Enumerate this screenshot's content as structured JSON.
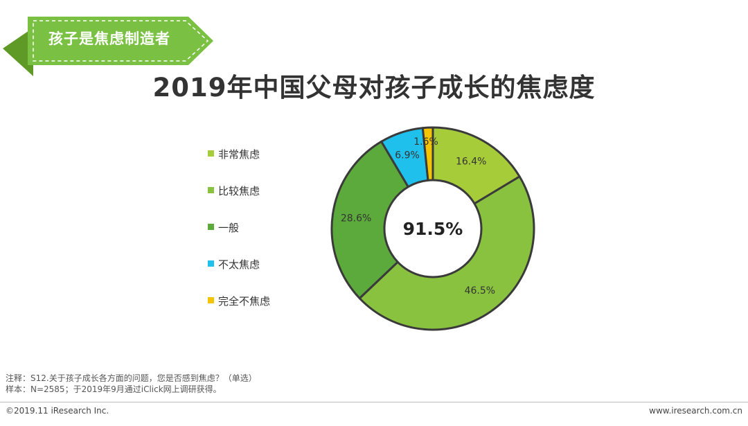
{
  "banner": {
    "label": "孩子是焦虑制造者",
    "color": "#7ac143"
  },
  "header": {
    "title": "2019年中国父母对孩子成长的焦虑度"
  },
  "chart_data": {
    "type": "pie",
    "title": "2019年中国父母对孩子成长的焦虑度",
    "center_label": "91.5%",
    "legend_position": "left",
    "series": [
      {
        "name": "非常焦虑",
        "value": 16.4,
        "label": "16.4%",
        "color": "#a6cc3a"
      },
      {
        "name": "比较焦虑",
        "value": 46.5,
        "label": "46.5%",
        "color": "#89c23f"
      },
      {
        "name": "一般",
        "value": 28.6,
        "label": "28.6%",
        "color": "#5caa3b"
      },
      {
        "name": "不太焦虑",
        "value": 6.9,
        "label": "6.9%",
        "color": "#1fc0ec"
      },
      {
        "name": "完全不焦虑",
        "value": 1.6,
        "label": "1.6%",
        "color": "#f5c400"
      }
    ]
  },
  "notes": {
    "line1": "注释：S12.关于孩子成长各方面的问题，您是否感到焦虑？（单选）",
    "line2": "样本：N=2585；于2019年9月通过iClick网上调研获得。"
  },
  "footer": {
    "copyright": "©2019.11 iResearch Inc.",
    "website": "www.iresearch.com.cn"
  }
}
